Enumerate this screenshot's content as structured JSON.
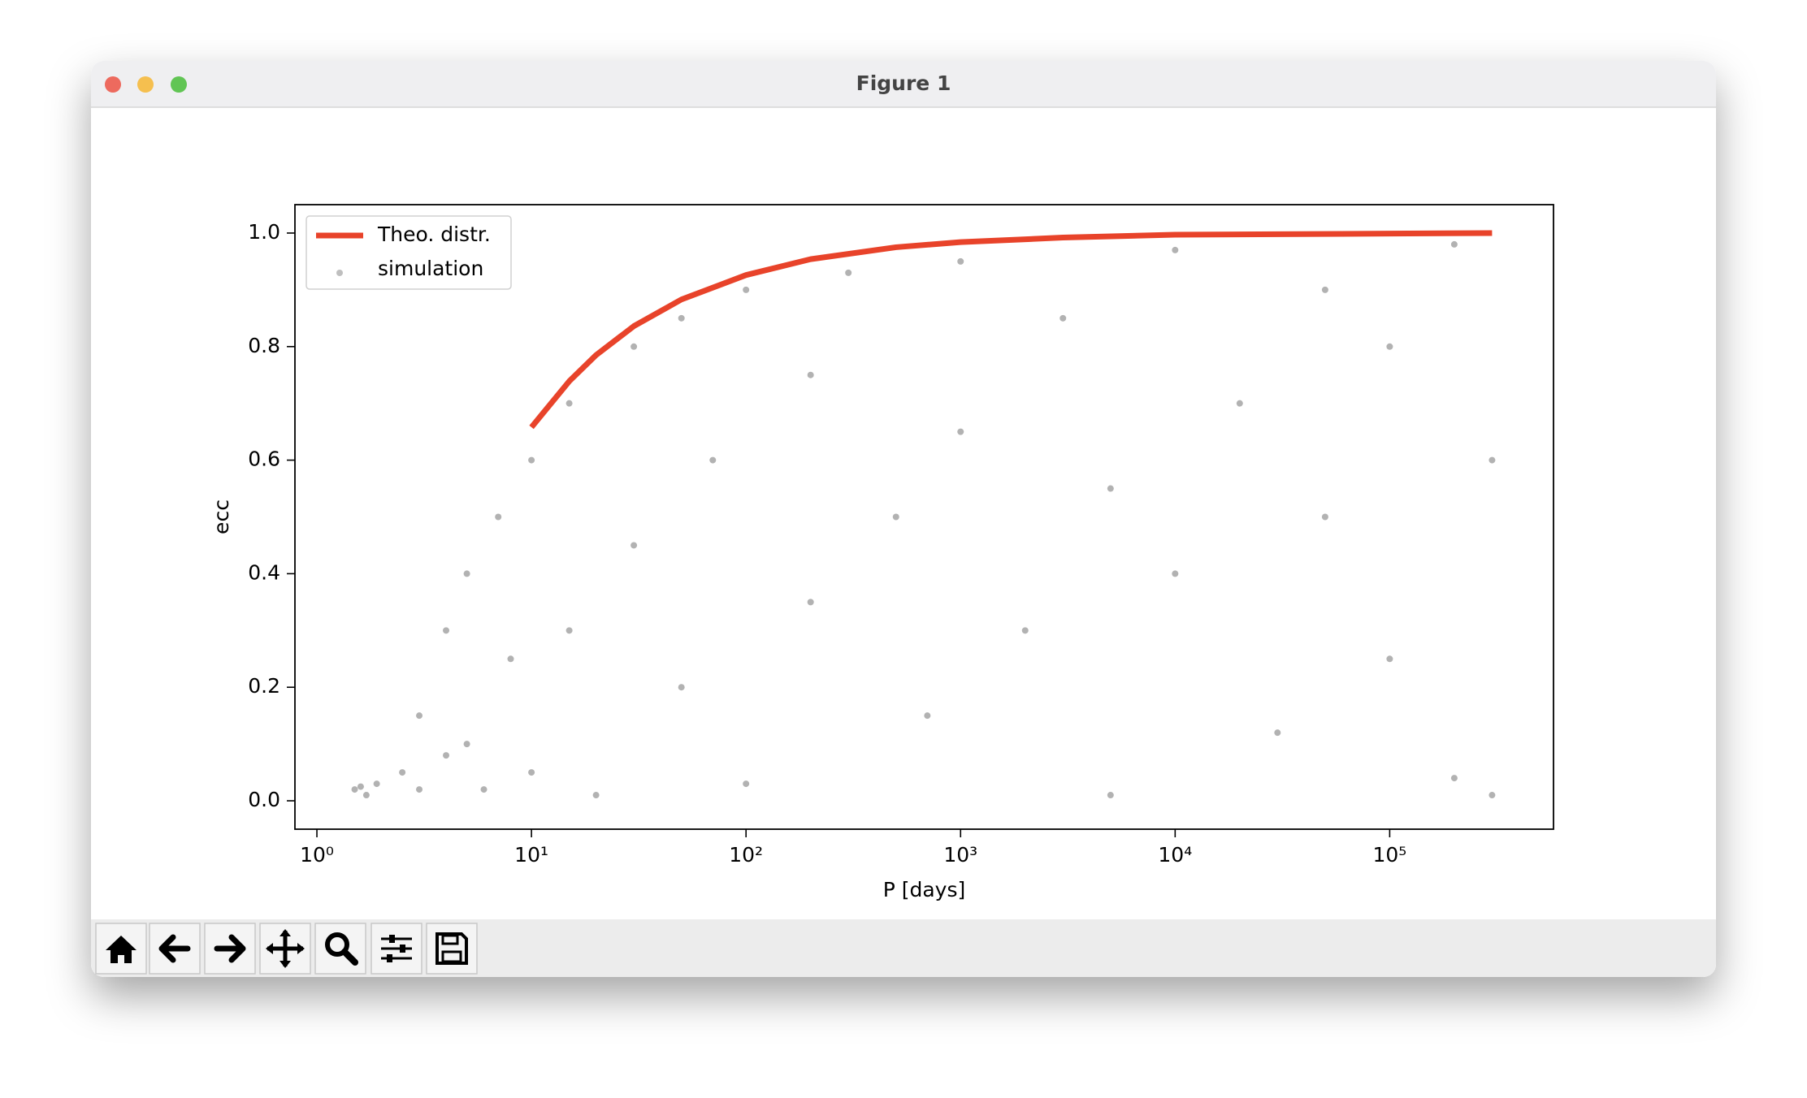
{
  "window": {
    "title": "Figure 1"
  },
  "chart_data": {
    "type": "scatter",
    "xlabel": "P [days]",
    "ylabel": "ecc",
    "xscale": "log",
    "xlim": [
      0.79,
      580000
    ],
    "ylim": [
      -0.05,
      1.05
    ],
    "xticks": [
      {
        "value": 1,
        "label": "10⁰"
      },
      {
        "value": 10,
        "label": "10¹"
      },
      {
        "value": 100,
        "label": "10²"
      },
      {
        "value": 1000,
        "label": "10³"
      },
      {
        "value": 10000,
        "label": "10⁴"
      },
      {
        "value": 100000,
        "label": "10⁵"
      }
    ],
    "yticks": [
      {
        "value": 0,
        "label": "0.0"
      },
      0.2,
      0.4,
      0.6,
      0.8,
      {
        "value": 1,
        "label": "1.0"
      }
    ],
    "legend": "upper left",
    "series": [
      {
        "name": "Theo. distr.",
        "type": "line",
        "color": "#e8432a",
        "x": [
          10,
          15,
          20,
          30,
          50,
          100,
          200,
          500,
          1000,
          3000,
          10000,
          100000,
          300000
        ],
        "values": [
          0.658,
          0.739,
          0.785,
          0.836,
          0.883,
          0.926,
          0.954,
          0.975,
          0.984,
          0.992,
          0.997,
          0.999,
          1.0
        ]
      },
      {
        "name": "simulation",
        "type": "scatter",
        "color": "#000000",
        "x": [
          1.5,
          1.7,
          1.9,
          1.6,
          2.5,
          3,
          3,
          4,
          4,
          5,
          5,
          6,
          7,
          8,
          10,
          10,
          15,
          15,
          20,
          30,
          30,
          50,
          50,
          70,
          100,
          100,
          200,
          200,
          300,
          500,
          700,
          1000,
          1000,
          2000,
          3000,
          5000,
          5000,
          10000,
          10000,
          20000,
          30000,
          50000,
          50000,
          100000,
          100000,
          200000,
          200000,
          300000,
          300000
        ],
        "values": [
          0.02,
          0.01,
          0.03,
          0.025,
          0.05,
          0.15,
          0.02,
          0.3,
          0.08,
          0.4,
          0.1,
          0.02,
          0.5,
          0.25,
          0.6,
          0.05,
          0.7,
          0.3,
          0.01,
          0.8,
          0.45,
          0.85,
          0.2,
          0.6,
          0.9,
          0.03,
          0.75,
          0.35,
          0.93,
          0.5,
          0.15,
          0.95,
          0.65,
          0.3,
          0.85,
          0.01,
          0.55,
          0.97,
          0.4,
          0.7,
          0.12,
          0.9,
          0.5,
          0.25,
          0.8,
          0.98,
          0.04,
          0.6,
          0.01
        ]
      }
    ]
  }
}
